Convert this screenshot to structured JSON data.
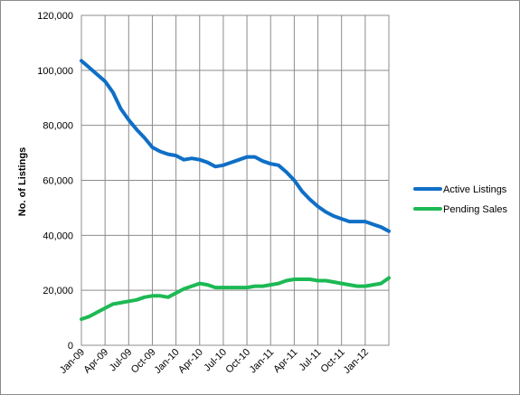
{
  "chart_data": {
    "type": "line",
    "title": "",
    "xlabel": "",
    "ylabel": "No. of Listings",
    "ylim": [
      0,
      120000
    ],
    "yticks": [
      0,
      20000,
      40000,
      60000,
      80000,
      100000,
      120000
    ],
    "ytick_labels": [
      "0",
      "20,000",
      "40,000",
      "60,000",
      "80,000",
      "100,000",
      "120,000"
    ],
    "x_tick_labels": [
      "Jan-09",
      "Apr-09",
      "Jul-09",
      "Oct-09",
      "Jan-10",
      "Apr-10",
      "Jul-10",
      "Oct-10",
      "Jan-11",
      "Apr-11",
      "Jul-11",
      "Oct-11",
      "Jan-12"
    ],
    "x_months_total": 39,
    "grid": "both",
    "legend_position": "right",
    "series": [
      {
        "name": "Active Listings",
        "color": "#0f6fc6",
        "points": [
          [
            0,
            103500
          ],
          [
            1,
            101000
          ],
          [
            2,
            98500
          ],
          [
            3,
            96000
          ],
          [
            4,
            92000
          ],
          [
            5,
            86000
          ],
          [
            6,
            82000
          ],
          [
            7,
            78500
          ],
          [
            8,
            75500
          ],
          [
            9,
            72000
          ],
          [
            10,
            70500
          ],
          [
            11,
            69500
          ],
          [
            12,
            69000
          ],
          [
            13,
            67500
          ],
          [
            14,
            68000
          ],
          [
            15,
            67500
          ],
          [
            16,
            66500
          ],
          [
            17,
            65000
          ],
          [
            18,
            65500
          ],
          [
            19,
            66500
          ],
          [
            20,
            67500
          ],
          [
            21,
            68500
          ],
          [
            22,
            68500
          ],
          [
            23,
            67000
          ],
          [
            24,
            66000
          ],
          [
            25,
            65500
          ],
          [
            26,
            63000
          ],
          [
            27,
            60000
          ],
          [
            28,
            56000
          ],
          [
            29,
            53000
          ],
          [
            30,
            50500
          ],
          [
            31,
            48500
          ],
          [
            32,
            47000
          ],
          [
            33,
            46000
          ],
          [
            34,
            45000
          ],
          [
            35,
            45000
          ],
          [
            36,
            45000
          ],
          [
            37,
            44000
          ],
          [
            38,
            43000
          ],
          [
            39,
            41500
          ]
        ]
      },
      {
        "name": "Pending Sales",
        "color": "#1db954",
        "points": [
          [
            0,
            9500
          ],
          [
            1,
            10500
          ],
          [
            2,
            12000
          ],
          [
            3,
            13500
          ],
          [
            4,
            15000
          ],
          [
            5,
            15500
          ],
          [
            6,
            16000
          ],
          [
            7,
            16500
          ],
          [
            8,
            17500
          ],
          [
            9,
            18000
          ],
          [
            10,
            18000
          ],
          [
            11,
            17500
          ],
          [
            12,
            19000
          ],
          [
            13,
            20500
          ],
          [
            14,
            21500
          ],
          [
            15,
            22500
          ],
          [
            16,
            22000
          ],
          [
            17,
            21000
          ],
          [
            18,
            21000
          ],
          [
            19,
            21000
          ],
          [
            20,
            21000
          ],
          [
            21,
            21000
          ],
          [
            22,
            21500
          ],
          [
            23,
            21500
          ],
          [
            24,
            22000
          ],
          [
            25,
            22500
          ],
          [
            26,
            23500
          ],
          [
            27,
            24000
          ],
          [
            28,
            24000
          ],
          [
            29,
            24000
          ],
          [
            30,
            23500
          ],
          [
            31,
            23500
          ],
          [
            32,
            23000
          ],
          [
            33,
            22500
          ],
          [
            34,
            22000
          ],
          [
            35,
            21500
          ],
          [
            36,
            21500
          ],
          [
            37,
            22000
          ],
          [
            38,
            22500
          ],
          [
            39,
            24500
          ]
        ]
      }
    ]
  }
}
